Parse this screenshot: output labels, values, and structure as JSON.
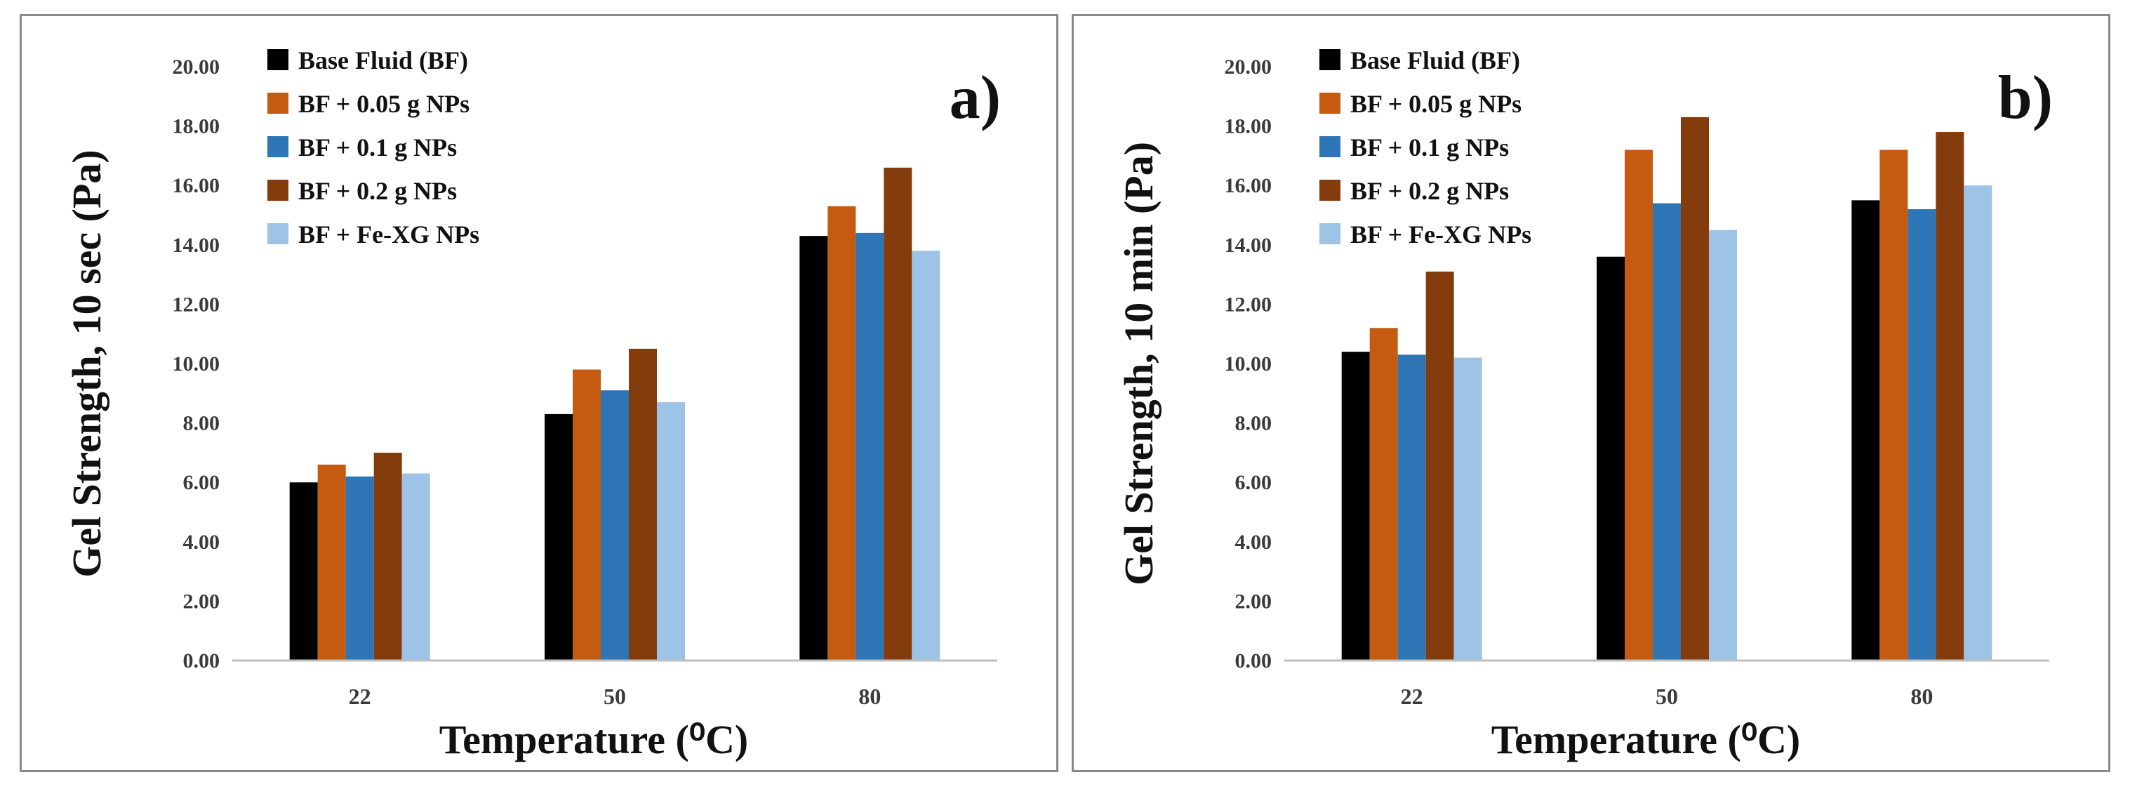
{
  "chart_data": [
    {
      "type": "bar",
      "panel_label": "a)",
      "categories": [
        "22",
        "50",
        "80"
      ],
      "ylabel": "Gel Strength, 10 sec (Pa)",
      "xlabel": "Temperature (⁰C)",
      "ylim": [
        0,
        20
      ],
      "yticks": [
        "0.00",
        "2.00",
        "4.00",
        "6.00",
        "8.00",
        "10.00",
        "12.00",
        "14.00",
        "16.00",
        "18.00",
        "20.00"
      ],
      "grid": false,
      "legend_position": "top-left",
      "series": [
        {
          "name": "Base Fluid (BF)",
          "color": "#000000",
          "values": [
            6.0,
            8.3,
            14.3
          ]
        },
        {
          "name": "BF + 0.05 g NPs",
          "color": "#c55a11",
          "values": [
            6.6,
            9.8,
            15.3
          ]
        },
        {
          "name": "BF + 0.1 g NPs",
          "color": "#2e75b6",
          "values": [
            6.2,
            9.1,
            14.4
          ]
        },
        {
          "name": "BF + 0.2 g NPs",
          "color": "#843c0c",
          "values": [
            7.0,
            10.5,
            16.6
          ]
        },
        {
          "name": "BF + Fe-XG NPs",
          "color": "#9dc3e6",
          "values": [
            6.3,
            8.7,
            13.8
          ]
        }
      ]
    },
    {
      "type": "bar",
      "panel_label": "b)",
      "categories": [
        "22",
        "50",
        "80"
      ],
      "ylabel": "Gel Strength, 10 min (Pa)",
      "xlabel": "Temperature (⁰C)",
      "ylim": [
        0,
        20
      ],
      "yticks": [
        "0.00",
        "2.00",
        "4.00",
        "6.00",
        "8.00",
        "10.00",
        "12.00",
        "14.00",
        "16.00",
        "18.00",
        "20.00"
      ],
      "grid": false,
      "legend_position": "top-left",
      "series": [
        {
          "name": "Base Fluid (BF)",
          "color": "#000000",
          "values": [
            10.4,
            13.6,
            15.5
          ]
        },
        {
          "name": "BF + 0.05 g NPs",
          "color": "#c55a11",
          "values": [
            11.2,
            17.2,
            17.2
          ]
        },
        {
          "name": "BF + 0.1 g NPs",
          "color": "#2e75b6",
          "values": [
            10.3,
            15.4,
            15.2
          ]
        },
        {
          "name": "BF + 0.2 g NPs",
          "color": "#843c0c",
          "values": [
            13.1,
            18.3,
            17.8
          ]
        },
        {
          "name": "BF + Fe-XG NPs",
          "color": "#9dc3e6",
          "values": [
            10.2,
            14.5,
            16.0
          ]
        }
      ]
    }
  ]
}
